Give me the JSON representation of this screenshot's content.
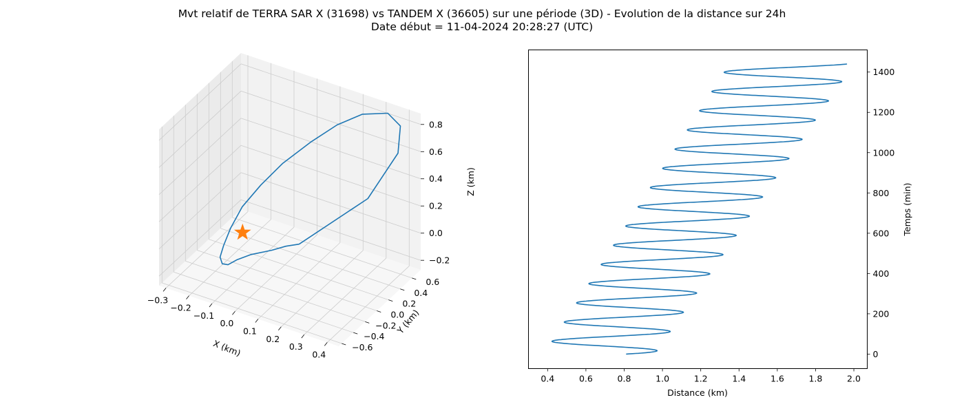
{
  "figure": {
    "title_line1": "Mvt relatif de TERRA SAR X (31698) vs TANDEM X (36605) sur une période (3D) - Evolution de la distance sur 24h",
    "title_line2": "Date début = 11-04-2024 20:28:27 (UTC)"
  },
  "colors": {
    "series": "#1f77b4",
    "marker": "#ff7f0e",
    "pane_side": "#ebebeb",
    "pane_back": "#f2f2f2",
    "pane_floor": "#f7f7f7",
    "grid": "#cccccc"
  },
  "chart_data": [
    {
      "type": "line",
      "projection": "3d",
      "xlabel": "X (km)",
      "ylabel": "Y (km)",
      "zlabel": "Z (km)",
      "xlim": [
        -0.33,
        0.45
      ],
      "ylim": [
        -0.65,
        0.75
      ],
      "zlim": [
        -0.27,
        0.88
      ],
      "x_ticks": [
        "−0.3",
        "−0.2",
        "−0.1",
        "0.0",
        "0.1",
        "0.2",
        "0.3",
        "0.4"
      ],
      "y_ticks": [
        "−0.6",
        "−0.4",
        "−0.2",
        "0.0",
        "0.2",
        "0.4",
        "0.6"
      ],
      "z_ticks": [
        "−0.2",
        "0.0",
        "0.2",
        "0.4",
        "0.6",
        "0.8"
      ],
      "grid": true,
      "series": [
        {
          "marker": "none",
          "x": [
            0.1,
            0.34,
            0.42,
            0.4,
            0.33,
            0.22,
            0.12,
            0.02,
            -0.08,
            -0.15,
            -0.2,
            -0.22,
            -0.22,
            -0.21,
            -0.18,
            -0.14,
            -0.1,
            -0.05,
            0.02,
            0.06,
            0.1
          ],
          "y": [
            0.05,
            0.28,
            0.48,
            0.6,
            0.66,
            0.66,
            0.62,
            0.56,
            0.48,
            0.38,
            0.26,
            0.14,
            0.02,
            -0.08,
            -0.16,
            -0.22,
            -0.22,
            -0.18,
            -0.1,
            -0.02,
            0.05
          ],
          "z": [
            0.0,
            0.38,
            0.68,
            0.82,
            0.85,
            0.78,
            0.66,
            0.5,
            0.32,
            0.16,
            0.02,
            -0.1,
            -0.18,
            -0.22,
            -0.22,
            -0.18,
            -0.12,
            -0.07,
            -0.03,
            -0.01,
            0.0
          ]
        },
        {
          "marker": "star",
          "x": [
            -0.12
          ],
          "y": [
            -0.05
          ],
          "z": [
            0.0
          ]
        }
      ]
    },
    {
      "type": "line",
      "xlabel": "Distance (km)",
      "ylabel": "Temps (min)",
      "xlim": [
        0.3,
        2.07
      ],
      "ylim": [
        -72,
        1510
      ],
      "x_ticks": [
        0.4,
        0.6,
        0.8,
        1.0,
        1.2,
        1.4,
        1.6,
        1.8,
        2.0
      ],
      "y_ticks": [
        0,
        200,
        400,
        600,
        800,
        1000,
        1200,
        1400
      ],
      "y_axis_side": "right",
      "series_model": {
        "description": "distance oscillating between a slowly rising minimum and maximum, period ~95 min, from t=0 to t=1440",
        "t_start": 0,
        "t_end": 1440,
        "period": 95.4,
        "start_value": 0.81,
        "min_start": 0.38,
        "min_end": 1.35,
        "max_start": 0.96,
        "max_end": 2.0
      }
    }
  ]
}
